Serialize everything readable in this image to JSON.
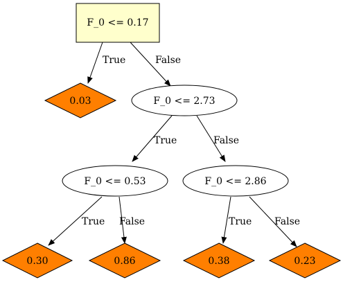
{
  "colors": {
    "root_fill": "#ffffcc",
    "leaf_fill": "#ff7f00",
    "split_fill": "#ffffff",
    "stroke": "#000000"
  },
  "nodes": {
    "root": {
      "label": "F_0 <= 0.17"
    },
    "leaf_1": {
      "label": "0.03"
    },
    "split_1": {
      "label": "F_0 <= 2.73"
    },
    "split_2": {
      "label": "F_0 <= 0.53"
    },
    "split_3": {
      "label": "F_0 <= 2.86"
    },
    "leaf_2": {
      "label": "0.30"
    },
    "leaf_3": {
      "label": "0.86"
    },
    "leaf_4": {
      "label": "0.38"
    },
    "leaf_5": {
      "label": "0.23"
    }
  },
  "edges": {
    "root_to_leaf_1": {
      "label": "True"
    },
    "root_to_split_1": {
      "label": "False"
    },
    "split_1_to_split_2": {
      "label": "True"
    },
    "split_1_to_split_3": {
      "label": "False"
    },
    "split_2_to_leaf_2": {
      "label": "True"
    },
    "split_2_to_leaf_3": {
      "label": "False"
    },
    "split_3_to_leaf_4": {
      "label": "True"
    },
    "split_3_to_leaf_5": {
      "label": "False"
    }
  }
}
